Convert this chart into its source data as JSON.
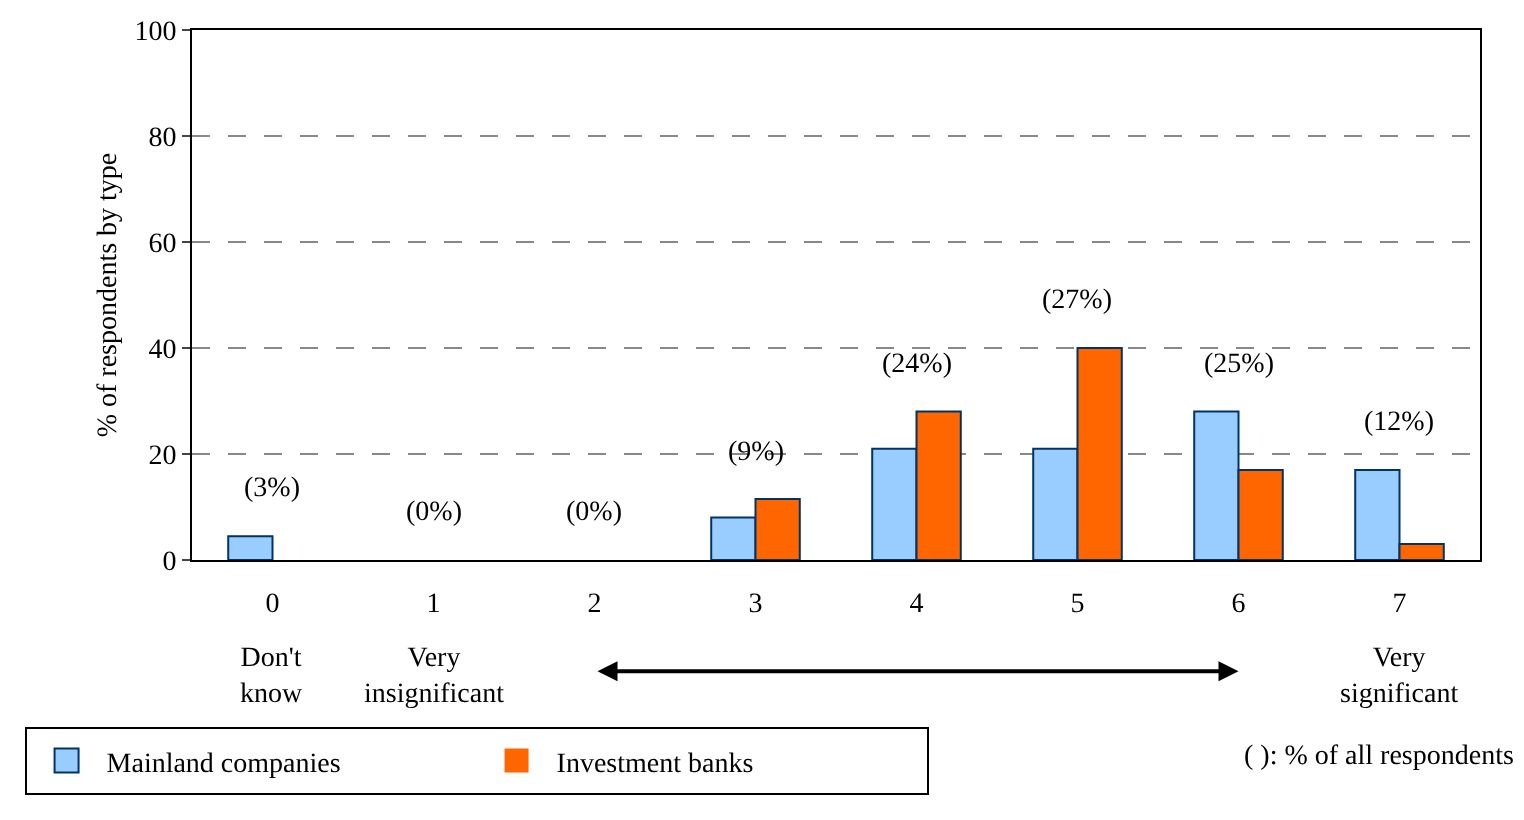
{
  "chart_data": {
    "type": "bar",
    "ylabel": "% of respondents by type",
    "categories": [
      "0",
      "1",
      "2",
      "3",
      "4",
      "5",
      "6",
      "7"
    ],
    "series": [
      {
        "name": "Mainland companies",
        "color": "#99ccff",
        "values": [
          4.5,
          0,
          0,
          8,
          21,
          21,
          28,
          17
        ]
      },
      {
        "name": "Investment banks",
        "color": "#ff6600",
        "values": [
          0,
          0,
          0,
          11.5,
          28,
          40,
          17,
          3
        ]
      }
    ],
    "ylim": [
      0,
      100
    ],
    "yticks": [
      0,
      20,
      40,
      60,
      80,
      100
    ],
    "grid": "y",
    "legend": "bottom left",
    "annotations": [
      "(3%)",
      "(0%)",
      "(0%)",
      "(9%)",
      "(24%)",
      "(27%)",
      "(25%)",
      "(12%)",
      "Don't know",
      "Very insignificant",
      "Very significant",
      "( ): % of all respondents"
    ]
  }
}
